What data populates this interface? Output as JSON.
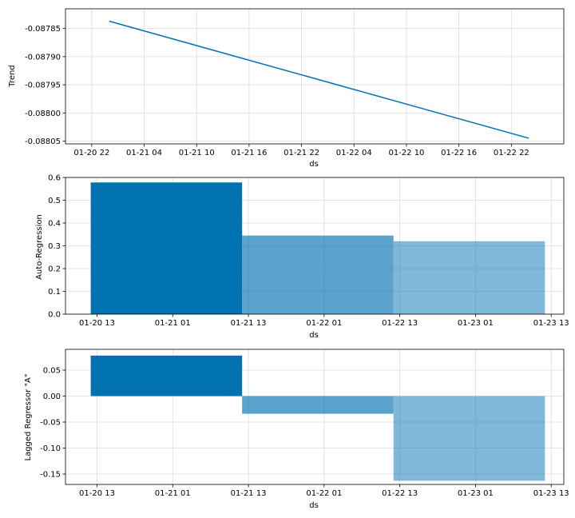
{
  "chart_data": [
    {
      "type": "line",
      "xlabel": "ds",
      "ylabel": "Trend",
      "x_ticks": [
        "01-20 22",
        "01-21 04",
        "01-21 10",
        "01-21 16",
        "01-21 22",
        "01-22 04",
        "01-22 10",
        "01-22 16",
        "01-22 22"
      ],
      "y_ticks": [
        "-0.08785",
        "-0.08790",
        "-0.08795",
        "-0.08800",
        "-0.08805"
      ],
      "xlim": [
        "2024-01-20 19:00",
        "2024-01-23 04:00"
      ],
      "ylim": [
        -0.088055,
        -0.087815
      ],
      "grid": true,
      "color": "#0072B2",
      "series": [
        {
          "x": [
            "2024-01-21 00:00",
            "2024-01-23 00:00"
          ],
          "y": [
            -0.087837,
            -0.088045
          ]
        }
      ]
    },
    {
      "type": "bar",
      "xlabel": "ds",
      "ylabel": "Auto-Regression",
      "x_ticks": [
        "01-20 13",
        "01-21 01",
        "01-21 13",
        "01-22 01",
        "01-22 13",
        "01-23 01",
        "01-23 13"
      ],
      "y_ticks": [
        "0.0",
        "0.1",
        "0.2",
        "0.3",
        "0.4",
        "0.5",
        "0.6"
      ],
      "xlim": [
        "2024-01-20 08:00",
        "2024-01-23 15:00"
      ],
      "ylim": [
        0,
        0.6
      ],
      "grid": true,
      "bars": [
        {
          "start": "2024-01-20 12:00",
          "end": "2024-01-21 12:00",
          "value": 0.578,
          "color": "#0072B2",
          "alpha": 1.0
        },
        {
          "start": "2024-01-21 12:00",
          "end": "2024-01-22 12:00",
          "value": 0.345,
          "color": "#0072B2",
          "alpha": 0.65
        },
        {
          "start": "2024-01-22 12:00",
          "end": "2024-01-23 12:00",
          "value": 0.32,
          "color": "#0072B2",
          "alpha": 0.5
        }
      ]
    },
    {
      "type": "bar",
      "xlabel": "ds",
      "ylabel": "Lagged Regressor \"A\"",
      "x_ticks": [
        "01-20 13",
        "01-21 01",
        "01-21 13",
        "01-22 01",
        "01-22 13",
        "01-23 01",
        "01-23 13"
      ],
      "y_ticks": [
        "0.05",
        "0.00",
        "-0.05",
        "-0.10",
        "-0.15"
      ],
      "xlim": [
        "2024-01-20 08:00",
        "2024-01-23 15:00"
      ],
      "ylim": [
        -0.17,
        0.09
      ],
      "grid": true,
      "bars": [
        {
          "start": "2024-01-20 12:00",
          "end": "2024-01-21 12:00",
          "value": 0.078,
          "color": "#0072B2",
          "alpha": 1.0
        },
        {
          "start": "2024-01-21 12:00",
          "end": "2024-01-22 12:00",
          "value": -0.034,
          "color": "#0072B2",
          "alpha": 0.65
        },
        {
          "start": "2024-01-22 12:00",
          "end": "2024-01-23 12:00",
          "value": -0.163,
          "color": "#0072B2",
          "alpha": 0.5
        }
      ]
    }
  ]
}
